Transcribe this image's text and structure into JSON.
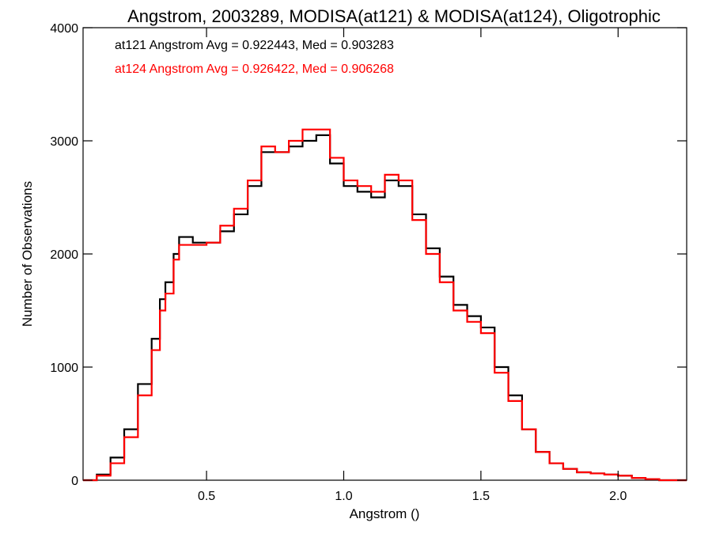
{
  "chart_data": {
    "type": "line",
    "style": "step-histogram",
    "title": "Angstrom, 2003289, MODISA(at121) & MODISA(at124), Oligotrophic",
    "xlabel": "Angstrom ()",
    "ylabel": "Number of Observations",
    "xlim": [
      0.05,
      2.25
    ],
    "ylim": [
      0,
      4000
    ],
    "x_ticks": [
      0.5,
      1.0,
      1.5,
      2.0
    ],
    "x_tick_labels": [
      "0.5",
      "1.0",
      "1.5",
      "2.0"
    ],
    "y_ticks": [
      0,
      1000,
      2000,
      3000,
      4000
    ],
    "y_tick_labels": [
      "0",
      "1000",
      "2000",
      "3000",
      "4000"
    ],
    "grid": false,
    "annotations": [
      {
        "text": "at121 Angstrom Avg = 0.922443, Med = 0.903283",
        "color": "#000000"
      },
      {
        "text": "at124 Angstrom Avg = 0.926422, Med = 0.906268",
        "color": "#ff0000"
      }
    ],
    "series": [
      {
        "color": "#000000",
        "x": [
          0.05,
          0.1,
          0.15,
          0.2,
          0.25,
          0.3,
          0.33,
          0.35,
          0.38,
          0.4,
          0.45,
          0.5,
          0.55,
          0.6,
          0.65,
          0.7,
          0.75,
          0.8,
          0.85,
          0.9,
          0.95,
          1.0,
          1.05,
          1.1,
          1.15,
          1.2,
          1.25,
          1.3,
          1.35,
          1.4,
          1.45,
          1.5,
          1.55,
          1.6,
          1.65,
          1.7,
          1.75,
          1.8,
          1.85,
          1.9,
          1.95,
          2.0,
          2.05,
          2.1,
          2.15,
          2.2,
          2.25
        ],
        "y": [
          0,
          50,
          200,
          450,
          850,
          1250,
          1600,
          1750,
          2000,
          2150,
          2100,
          2100,
          2200,
          2350,
          2600,
          2900,
          2900,
          2950,
          3000,
          3050,
          2800,
          2600,
          2550,
          2500,
          2650,
          2600,
          2350,
          2050,
          1800,
          1550,
          1450,
          1350,
          1000,
          750,
          450,
          250,
          150,
          100,
          70,
          60,
          50,
          40,
          20,
          10,
          0,
          0,
          0
        ]
      },
      {
        "color": "#ff0000",
        "x": [
          0.05,
          0.1,
          0.15,
          0.2,
          0.25,
          0.3,
          0.33,
          0.35,
          0.38,
          0.4,
          0.45,
          0.5,
          0.55,
          0.6,
          0.65,
          0.7,
          0.75,
          0.8,
          0.85,
          0.9,
          0.95,
          1.0,
          1.05,
          1.1,
          1.15,
          1.2,
          1.25,
          1.3,
          1.35,
          1.4,
          1.45,
          1.5,
          1.55,
          1.6,
          1.65,
          1.7,
          1.75,
          1.8,
          1.85,
          1.9,
          1.95,
          2.0,
          2.05,
          2.1,
          2.15,
          2.2,
          2.25
        ],
        "y": [
          0,
          40,
          150,
          380,
          750,
          1150,
          1500,
          1650,
          1950,
          2080,
          2080,
          2100,
          2250,
          2400,
          2650,
          2950,
          2900,
          3000,
          3100,
          3100,
          2850,
          2650,
          2600,
          2550,
          2700,
          2650,
          2300,
          2000,
          1750,
          1500,
          1400,
          1300,
          950,
          700,
          450,
          250,
          150,
          100,
          70,
          60,
          50,
          40,
          20,
          10,
          0,
          0,
          0
        ]
      }
    ]
  }
}
